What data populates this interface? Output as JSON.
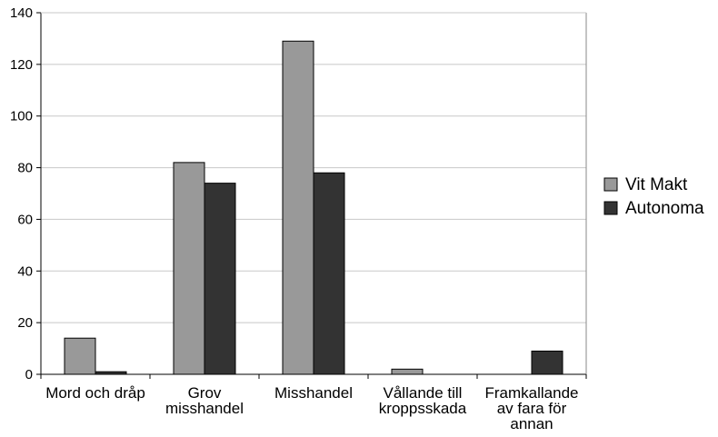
{
  "chart_data": {
    "type": "bar",
    "categories": [
      [
        "Mord och dråp"
      ],
      [
        "Grov",
        "misshandel"
      ],
      [
        "Misshandel"
      ],
      [
        "Vållande till",
        "kroppsskada"
      ],
      [
        "Framkallande",
        "av fara för",
        "annan"
      ]
    ],
    "series": [
      {
        "name": "Vit Makt",
        "values": [
          14,
          82,
          129,
          2,
          0
        ],
        "color": "#999999"
      },
      {
        "name": "Autonoma",
        "values": [
          1,
          74,
          78,
          0,
          9
        ],
        "color": "#333333"
      }
    ],
    "ylim": [
      0,
      140
    ],
    "yticks": [
      0,
      20,
      40,
      60,
      80,
      100,
      120,
      140
    ],
    "grid": true,
    "legend": "right"
  }
}
